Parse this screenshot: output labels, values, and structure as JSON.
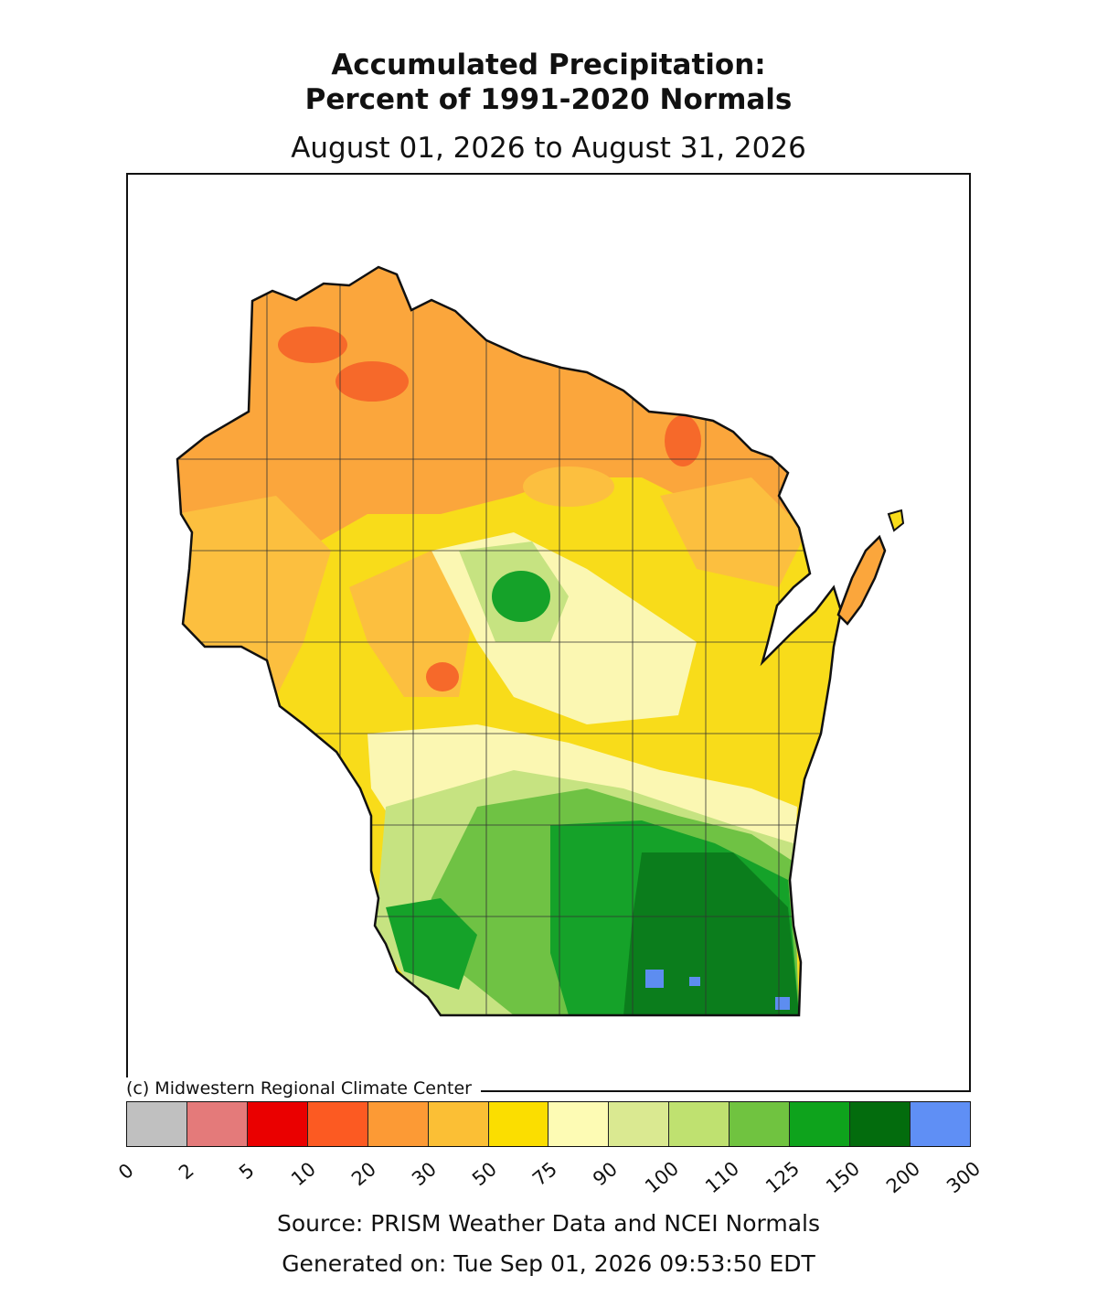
{
  "title_line1": "Accumulated Precipitation:",
  "title_line2": "Percent of 1991-2020 Normals",
  "subtitle": "August 01, 2026 to August 31, 2026",
  "copyright": "(c) Midwestern Regional Climate Center",
  "source": "Source: PRISM Weather Data and NCEI Normals",
  "generated": "Generated on: Tue Sep 01, 2026 09:53:50 EDT",
  "legend": {
    "ticks": [
      "0",
      "2",
      "5",
      "10",
      "20",
      "30",
      "50",
      "75",
      "90",
      "100",
      "110",
      "125",
      "150",
      "200",
      "300"
    ],
    "colors": [
      "#c0c0c0",
      "#e47a7a",
      "#ea0000",
      "#fc5a22",
      "#fc9a35",
      "#fbbf35",
      "#fbde00",
      "#fdfbb4",
      "#dae991",
      "#bfe170",
      "#70c340",
      "#0ea31c",
      "#036c0d",
      "#5f8ff5"
    ]
  },
  "map": {
    "region": "Wisconsin",
    "colors": {
      "orange": "#fba63c",
      "orange_red": "#f6692a",
      "light_orange": "#fcbf3f",
      "yellow": "#f8dc1a",
      "pale_yellow": "#fbf7b2",
      "light_green": "#c6e381",
      "mid_green": "#6fc244",
      "green": "#15a229",
      "dark_green": "#0b7d1c",
      "blue": "#5d8df0",
      "outline": "#111111"
    }
  }
}
